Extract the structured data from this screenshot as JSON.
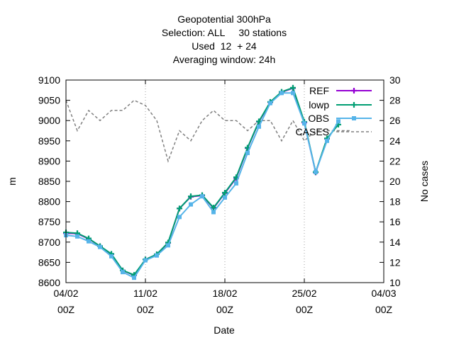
{
  "chart_data": {
    "type": "line",
    "title_lines": [
      "Geopotential 300hPa",
      "Selection: ALL     30 stations",
      "Used  12  + 24",
      "Averaging window: 24h"
    ],
    "xlabel": "Date",
    "ylabel": "m",
    "y2label": "No cases",
    "x_ticks": [
      {
        "day": 0,
        "line1": "04/02",
        "line2": "00Z"
      },
      {
        "day": 7,
        "line1": "11/02",
        "line2": "00Z"
      },
      {
        "day": 14,
        "line1": "18/02",
        "line2": "00Z"
      },
      {
        "day": 21,
        "line1": "25/02",
        "line2": "00Z"
      },
      {
        "day": 28,
        "line1": "04/03",
        "line2": "00Z"
      }
    ],
    "x_range_days": [
      0,
      28
    ],
    "ylim": [
      8600,
      9100
    ],
    "y_ticks": [
      8600,
      8650,
      8700,
      8750,
      8800,
      8850,
      8900,
      8950,
      9000,
      9050,
      9100
    ],
    "y2lim": [
      10,
      30
    ],
    "y2_ticks": [
      10,
      12,
      14,
      16,
      18,
      20,
      22,
      24,
      26,
      28,
      30
    ],
    "grid": true,
    "legend_position": "top-right",
    "series": [
      {
        "name": "REF",
        "color": "#9400d3",
        "marker": "plus",
        "axis": "y",
        "x": [
          0,
          1,
          2,
          3,
          4,
          5,
          6,
          7,
          8,
          9,
          10,
          11,
          12,
          13,
          14,
          15,
          16,
          17,
          18,
          19,
          20,
          21,
          22,
          23
        ],
        "y": [
          8722,
          8721,
          8708,
          8690,
          8670,
          8630,
          8618,
          8657,
          8670,
          8698,
          8783,
          8812,
          8815,
          8784,
          8821,
          8858,
          8932,
          8997,
          9045,
          9070,
          9080,
          8995,
          8872,
          8955
        ]
      },
      {
        "name": "lowp",
        "color": "#009e73",
        "marker": "plus",
        "axis": "y",
        "x": [
          0,
          1,
          2,
          3,
          4,
          5,
          6,
          7,
          8,
          9,
          10,
          11,
          12,
          13,
          14,
          15,
          16,
          17,
          18,
          19,
          20,
          21,
          22,
          23,
          24
        ],
        "y": [
          8724,
          8722,
          8709,
          8690,
          8671,
          8630,
          8619,
          8657,
          8670,
          8699,
          8783,
          8813,
          8816,
          8785,
          8822,
          8860,
          8933,
          8998,
          9046,
          9071,
          9081,
          8997,
          8873,
          8956,
          8990
        ]
      },
      {
        "name": "OBS",
        "color": "#56b4e9",
        "marker": "box",
        "axis": "y",
        "x": [
          0,
          1,
          2,
          3,
          4,
          5,
          6,
          7,
          8,
          9,
          10,
          11,
          12,
          13,
          14,
          15,
          16,
          17,
          18,
          19,
          20,
          21,
          22,
          23,
          24
        ],
        "y": [
          8717,
          8714,
          8702,
          8688,
          8665,
          8626,
          8612,
          8655,
          8667,
          8692,
          8762,
          8793,
          8813,
          8774,
          8810,
          8845,
          8920,
          8985,
          9043,
          9068,
          9068,
          8993,
          8873,
          8950,
          8998
        ]
      },
      {
        "name": "CASES",
        "color": "#808080",
        "style": "dashed",
        "axis": "y2",
        "x": [
          0,
          1,
          2,
          3,
          4,
          5,
          6,
          7,
          8,
          9,
          10,
          11,
          12,
          13,
          14,
          15,
          16,
          17,
          18,
          19,
          20,
          21,
          22,
          23,
          24,
          25
        ],
        "y": [
          28,
          25,
          27,
          26,
          27,
          27,
          28,
          27.5,
          26,
          22,
          25,
          24,
          26,
          27,
          26,
          26,
          25,
          26,
          26,
          24,
          26,
          24,
          25,
          25,
          25,
          25
        ]
      }
    ]
  }
}
